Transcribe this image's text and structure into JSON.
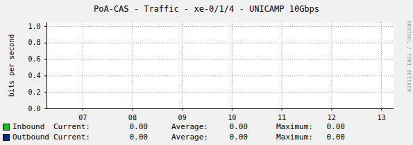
{
  "chart_data": {
    "type": "line",
    "title": "PoA-CAS - Traffic - xe-0/1/4 - UNICAMP 10Gbps",
    "ylabel": "bits per second",
    "x": [
      7,
      8,
      9,
      10,
      11,
      12,
      13
    ],
    "xlim": [
      6.28,
      13.25
    ],
    "xticks": [
      {
        "value": 7,
        "label": "07"
      },
      {
        "value": 8,
        "label": "08"
      },
      {
        "value": 9,
        "label": "09"
      },
      {
        "value": 10,
        "label": "10"
      },
      {
        "value": 11,
        "label": "11"
      },
      {
        "value": 12,
        "label": "12"
      },
      {
        "value": 13,
        "label": "13"
      }
    ],
    "ylim": [
      0,
      1.05
    ],
    "yticks": [
      {
        "value": 0,
        "label": "0.0"
      },
      {
        "value": 0.2,
        "label": "0.2"
      },
      {
        "value": 0.4,
        "label": "0.4"
      },
      {
        "value": 0.6,
        "label": "0.6"
      },
      {
        "value": 0.8,
        "label": "0.8"
      },
      {
        "value": 1.0,
        "label": "1.0"
      }
    ],
    "grid": true,
    "stats_labels": [
      "Current:",
      "Average:",
      "Maximum:"
    ],
    "series": [
      {
        "name": "Inbound",
        "type": "area",
        "color": "#00cc00",
        "values": [
          0,
          0,
          0,
          0,
          0,
          0,
          0
        ],
        "stats": [
          {
            "value": 0,
            "label": "0.00"
          },
          {
            "value": 0,
            "label": "0.00"
          },
          {
            "value": 0,
            "label": "0.00"
          }
        ]
      },
      {
        "name": "Outbound",
        "type": "line",
        "color": "#002a97",
        "values": [
          0,
          0,
          0,
          0,
          0,
          0,
          0
        ],
        "stats": [
          {
            "value": 0,
            "label": "0.00"
          },
          {
            "value": 0,
            "label": "0.00"
          },
          {
            "value": 0,
            "label": "0.00"
          }
        ]
      }
    ],
    "annotations": [
      "RRDTOOL / TOBI OETIKER"
    ]
  }
}
